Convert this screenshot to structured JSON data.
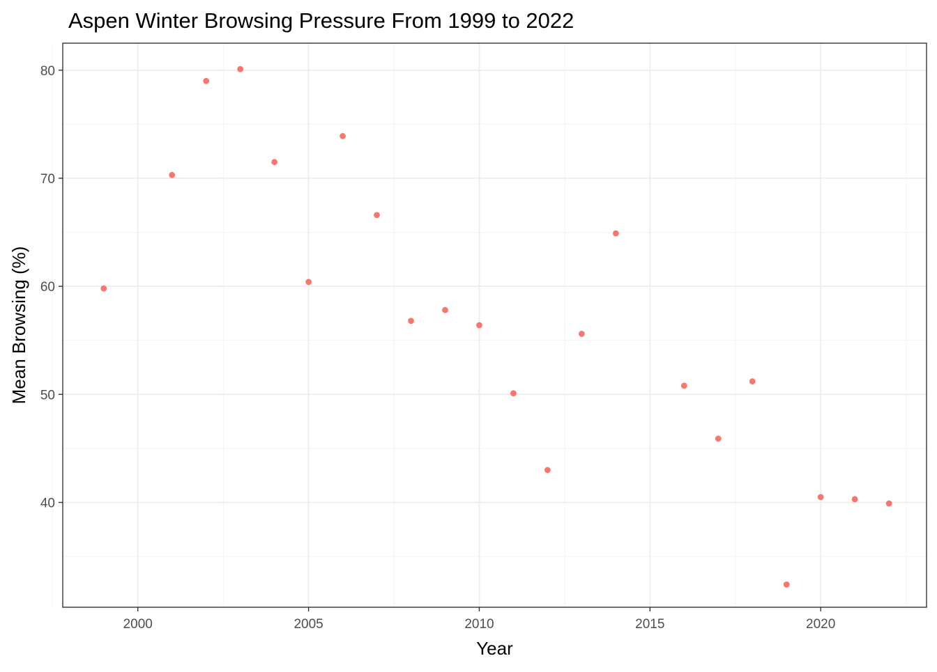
{
  "chart_data": {
    "type": "scatter",
    "title": "Aspen Winter Browsing Pressure From 1999 to 2022",
    "xlabel": "Year",
    "ylabel": "Mean Browsing (%)",
    "xlim": [
      1997.8,
      2023.1
    ],
    "ylim": [
      30.3,
      82.5
    ],
    "x_ticks": [
      2000,
      2005,
      2010,
      2015,
      2020
    ],
    "x_tick_labels": [
      "2000",
      "2005",
      "2010",
      "2015",
      "2020"
    ],
    "x_minor_ticks": [
      1997.5,
      2002.5,
      2007.5,
      2012.5,
      2017.5,
      2022.5
    ],
    "y_ticks": [
      40,
      50,
      60,
      70,
      80
    ],
    "y_tick_labels": [
      "40",
      "50",
      "60",
      "70",
      "80"
    ],
    "y_minor_ticks": [
      35,
      45,
      55,
      65,
      75
    ],
    "grid": true,
    "legend": "none",
    "point_color": "#F8766D",
    "points": [
      {
        "x": 1999,
        "y": 59.8
      },
      {
        "x": 2001,
        "y": 70.3
      },
      {
        "x": 2002,
        "y": 79.0
      },
      {
        "x": 2003,
        "y": 80.1
      },
      {
        "x": 2004,
        "y": 71.5
      },
      {
        "x": 2005,
        "y": 60.4
      },
      {
        "x": 2006,
        "y": 73.9
      },
      {
        "x": 2007,
        "y": 66.6
      },
      {
        "x": 2008,
        "y": 56.8
      },
      {
        "x": 2009,
        "y": 57.8
      },
      {
        "x": 2010,
        "y": 56.4
      },
      {
        "x": 2011,
        "y": 50.1
      },
      {
        "x": 2012,
        "y": 43.0
      },
      {
        "x": 2013,
        "y": 55.6
      },
      {
        "x": 2014,
        "y": 64.9
      },
      {
        "x": 2016,
        "y": 50.8
      },
      {
        "x": 2017,
        "y": 45.9
      },
      {
        "x": 2018,
        "y": 51.2
      },
      {
        "x": 2019,
        "y": 32.4
      },
      {
        "x": 2020,
        "y": 40.5
      },
      {
        "x": 2021,
        "y": 40.3
      },
      {
        "x": 2022,
        "y": 39.9
      }
    ]
  }
}
